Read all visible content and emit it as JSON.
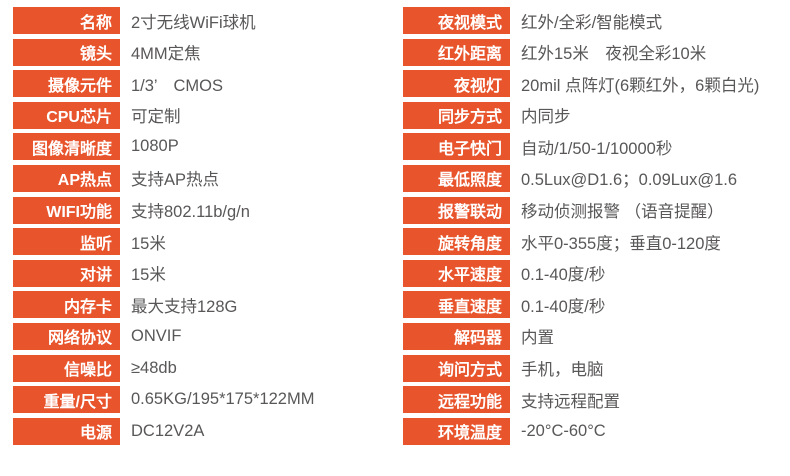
{
  "colors": {
    "accent": "#e8542c",
    "label_text": "#ffffff",
    "value_text": "#595757",
    "background": "#ffffff"
  },
  "spec_table": {
    "columns": [
      {
        "rows": [
          {
            "label": "名称",
            "value": "2寸无线WiFi球机"
          },
          {
            "label": "镜头",
            "value": "4MM定焦"
          },
          {
            "label": "摄像元件",
            "value": "1/3’　CMOS"
          },
          {
            "label": "CPU芯片",
            "value": "可定制"
          },
          {
            "label": "图像清晰度",
            "value": "1080P"
          },
          {
            "label": "AP热点",
            "value": "支持AP热点"
          },
          {
            "label": "WIFI功能",
            "value": "支持802.11b/g/n"
          },
          {
            "label": "监听",
            "value": "15米"
          },
          {
            "label": "对讲",
            "value": "15米"
          },
          {
            "label": "内存卡",
            "value": "最大支持128G"
          },
          {
            "label": "网络协议",
            "value": "ONVIF"
          },
          {
            "label": "信噪比",
            "value": "≥48db"
          },
          {
            "label": "重量/尺寸",
            "value": "0.65KG/195*175*122MM"
          },
          {
            "label": "电源",
            "value": "DC12V2A"
          }
        ]
      },
      {
        "rows": [
          {
            "label": "夜视模式",
            "value": "红外/全彩/智能模式"
          },
          {
            "label": "红外距离",
            "value": "红外15米　夜视全彩10米"
          },
          {
            "label": "夜视灯",
            "value": "20mil 点阵灯(6颗红外，6颗白光)"
          },
          {
            "label": "同步方式",
            "value": "内同步"
          },
          {
            "label": "电子快门",
            "value": "自动/1/50-1/10000秒"
          },
          {
            "label": "最低照度",
            "value": "0.5Lux@D1.6；0.09Lux@1.6"
          },
          {
            "label": "报警联动",
            "value": "移动侦测报警 （语音提醒）"
          },
          {
            "label": "旋转角度",
            "value": "水平0-355度；垂直0-120度"
          },
          {
            "label": "水平速度",
            "value": "0.1-40度/秒"
          },
          {
            "label": "垂直速度",
            "value": "0.1-40度/秒"
          },
          {
            "label": "解码器",
            "value": "内置"
          },
          {
            "label": "询问方式",
            "value": "手机，电脑"
          },
          {
            "label": "远程功能",
            "value": "支持远程配置"
          },
          {
            "label": "环境温度",
            "value": "-20°C-60°C"
          }
        ]
      }
    ]
  }
}
